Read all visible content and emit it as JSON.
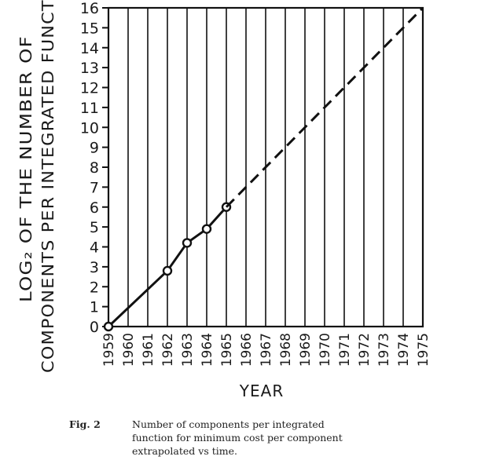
{
  "chart_data": {
    "type": "line",
    "x_ticks": [
      "1959",
      "1960",
      "1961",
      "1962",
      "1963",
      "1964",
      "1965",
      "1966",
      "1967",
      "1968",
      "1969",
      "1970",
      "1971",
      "1972",
      "1973",
      "1974",
      "1975"
    ],
    "y_ticks": [
      "0",
      "1",
      "2",
      "3",
      "4",
      "5",
      "6",
      "7",
      "8",
      "9",
      "10",
      "11",
      "12",
      "13",
      "14",
      "15",
      "16"
    ],
    "ylim": [
      0,
      16
    ],
    "xlim": [
      1959,
      1975
    ],
    "xlabel": "YEAR",
    "ylabel_line1": "LOG₂ OF THE NUMBER OF",
    "ylabel_line2": "COMPONENTS PER INTEGRATED FUNCTION",
    "series": [
      {
        "style": "solid",
        "markers": "open-circle",
        "x": [
          1959,
          1962,
          1963,
          1964,
          1965
        ],
        "y": [
          0,
          2.8,
          4.2,
          4.9,
          6.0
        ]
      },
      {
        "style": "dashed",
        "markers": "none",
        "x": [
          1965,
          1975
        ],
        "y": [
          6.0,
          16
        ]
      }
    ],
    "grid": true,
    "grid_direction": "vertical",
    "line_color": "#111111"
  },
  "caption": {
    "label": "Fig. 2",
    "line1": "Number of components per integrated",
    "line2": "function for minimum cost per component",
    "line3": "extrapolated vs time."
  }
}
